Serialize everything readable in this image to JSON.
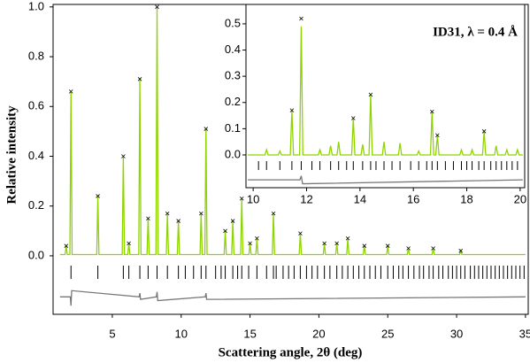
{
  "chart_data": [
    {
      "type": "line",
      "x_label": "Scattering angle, 2θ (deg)",
      "y_label": "Relative intensity",
      "xlim": [
        0.7,
        35.2
      ],
      "ylim": [
        -0.235,
        1.01
      ],
      "xticks": [
        5,
        10,
        15,
        20,
        25,
        30,
        35
      ],
      "yticks": [
        {
          "value": 0,
          "label": "0.0"
        },
        0.2,
        0.4,
        0.6,
        0.8,
        {
          "value": 1,
          "label": "1.0"
        }
      ],
      "series": [
        {
          "kind": "line",
          "color": "#8fd400",
          "x": [
            1.2,
            1.57,
            1.65,
            1.73,
            1.92,
            2.0,
            2.08,
            3.87,
            3.95,
            4.03,
            5.72,
            5.8,
            5.88,
            6.12,
            6.2,
            6.28,
            6.92,
            7.0,
            7.08,
            7.52,
            7.6,
            7.68,
            8.17,
            8.25,
            8.33,
            8.92,
            9.0,
            9.08,
            9.72,
            9.8,
            9.88,
            11.37,
            11.45,
            11.53,
            11.72,
            11.8,
            11.88,
            13.12,
            13.2,
            13.28,
            13.67,
            13.75,
            13.83,
            14.32,
            14.4,
            14.48,
            14.92,
            15.0,
            15.08,
            15.42,
            15.5,
            15.58,
            16.62,
            16.7,
            16.78,
            18.57,
            18.65,
            18.73,
            20.32,
            20.4,
            20.48,
            21.22,
            21.3,
            21.38,
            22.02,
            22.1,
            22.18,
            23.22,
            23.3,
            23.38,
            24.92,
            25.0,
            25.08,
            26.42,
            26.5,
            26.58,
            28.22,
            28.3,
            28.38,
            30.22,
            30.3,
            30.38,
            35
          ],
          "values": [
            0.005,
            0.005,
            0.04,
            0.005,
            0.005,
            0.66,
            0.005,
            0.005,
            0.24,
            0.005,
            0.005,
            0.4,
            0.005,
            0.005,
            0.05,
            0.005,
            0.005,
            0.71,
            0.005,
            0.005,
            0.15,
            0.005,
            0.005,
            1.0,
            0.005,
            0.005,
            0.17,
            0.005,
            0.005,
            0.14,
            0.005,
            0.005,
            0.17,
            0.005,
            0.005,
            0.51,
            0.005,
            0.005,
            0.1,
            0.005,
            0.005,
            0.14,
            0.005,
            0.005,
            0.23,
            0.005,
            0.005,
            0.05,
            0.005,
            0.005,
            0.07,
            0.005,
            0.005,
            0.17,
            0.005,
            0.005,
            0.09,
            0.005,
            0.005,
            0.05,
            0.005,
            0.005,
            0.05,
            0.005,
            0.005,
            0.07,
            0.005,
            0.005,
            0.04,
            0.005,
            0.005,
            0.04,
            0.005,
            0.005,
            0.03,
            0.005,
            0.005,
            0.03,
            0.005,
            0.005,
            0.02,
            0.005,
            0.005
          ]
        },
        {
          "kind": "cross",
          "color": "#000000",
          "x": [
            1.65,
            2.0,
            3.95,
            5.8,
            6.2,
            7.0,
            7.6,
            8.25,
            9.0,
            9.8,
            11.45,
            11.8,
            13.2,
            13.75,
            14.4,
            15.0,
            15.5,
            16.7,
            18.65,
            20.4,
            21.3,
            22.1,
            23.3,
            25.0,
            26.5,
            28.3,
            30.3
          ],
          "values": [
            0.04,
            0.66,
            0.24,
            0.4,
            0.05,
            0.71,
            0.15,
            1.0,
            0.17,
            0.14,
            0.17,
            0.51,
            0.1,
            0.14,
            0.23,
            0.05,
            0.07,
            0.17,
            0.09,
            0.05,
            0.05,
            0.07,
            0.04,
            0.04,
            0.03,
            0.03,
            0.02
          ]
        },
        {
          "kind": "line",
          "color": "#777777",
          "x": [
            1.2,
            1.95,
            2.0,
            2.05,
            6.95,
            7.0,
            7.05,
            8.2,
            8.25,
            8.3,
            11.75,
            11.8,
            11.85,
            35
          ],
          "values": [
            -0.165,
            -0.165,
            -0.2,
            -0.14,
            -0.165,
            -0.15,
            -0.175,
            -0.165,
            -0.145,
            -0.18,
            -0.165,
            -0.15,
            -0.175,
            -0.165
          ]
        }
      ],
      "reflections": [
        2.0,
        3.95,
        5.8,
        6.2,
        7.0,
        7.6,
        8.25,
        9.0,
        9.8,
        10.3,
        10.9,
        11.45,
        11.8,
        12.5,
        12.9,
        13.2,
        13.75,
        14.1,
        14.4,
        14.9,
        15.5,
        16.2,
        16.7,
        16.9,
        17.4,
        17.8,
        18.2,
        18.65,
        19.1,
        19.5,
        19.9,
        20.4,
        20.8,
        21.3,
        21.7,
        22.1,
        22.5,
        22.9,
        23.3,
        23.7,
        24.1,
        24.5,
        25.0,
        25.4,
        25.8,
        26.1,
        26.5,
        26.9,
        27.3,
        27.6,
        28.0,
        28.3,
        28.7,
        29.0,
        29.4,
        29.7,
        30.0,
        30.3,
        30.6,
        31.0,
        31.3,
        31.6,
        31.9,
        32.2,
        32.5,
        32.8,
        33.1,
        33.4,
        33.7,
        34.0,
        34.3,
        34.6,
        34.9
      ]
    },
    {
      "type": "line",
      "annotation": "ID31, λ = 0.4 Å",
      "xlim": [
        9.73,
        20.17
      ],
      "ylim": [
        -0.125,
        0.574
      ],
      "xticks": [
        10,
        12,
        14,
        16,
        18,
        20
      ],
      "yticks": [
        {
          "value": 0,
          "label": "0.0"
        },
        0.1,
        0.2,
        0.3,
        0.4,
        0.5
      ],
      "series": [
        {
          "kind": "line",
          "color": "#8fd400",
          "x": [
            9.8,
            10.44,
            10.5,
            10.56,
            10.94,
            11.0,
            11.06,
            11.39,
            11.45,
            11.51,
            11.74,
            11.8,
            11.86,
            12.44,
            12.5,
            12.56,
            12.84,
            12.9,
            12.96,
            13.14,
            13.2,
            13.26,
            13.69,
            13.75,
            13.81,
            14.04,
            14.1,
            14.16,
            14.34,
            14.4,
            14.46,
            14.84,
            14.9,
            14.96,
            15.44,
            15.5,
            15.56,
            16.14,
            16.2,
            16.26,
            16.64,
            16.7,
            16.76,
            16.84,
            16.9,
            16.96,
            17.74,
            17.8,
            17.86,
            18.14,
            18.2,
            18.26,
            18.59,
            18.65,
            18.71,
            19.04,
            19.1,
            19.16,
            19.44,
            19.5,
            19.56,
            19.84,
            19.9,
            19.96,
            20.1
          ],
          "values": [
            0.0,
            0.0,
            0.02,
            0.0,
            0.0,
            0.015,
            0.0,
            0.0,
            0.17,
            0.0,
            0.0,
            0.49,
            0.0,
            0.0,
            0.02,
            0.0,
            0.0,
            0.035,
            0.0,
            0.0,
            0.05,
            0.0,
            0.0,
            0.14,
            0.0,
            0.0,
            0.04,
            0.0,
            0.0,
            0.23,
            0.0,
            0.0,
            0.05,
            0.0,
            0.0,
            0.045,
            0.0,
            0.0,
            0.015,
            0.0,
            0.0,
            0.165,
            0.0,
            0.0,
            0.075,
            0.0,
            0.0,
            0.02,
            0.0,
            0.0,
            0.02,
            0.0,
            0.0,
            0.09,
            0.0,
            0.0,
            0.035,
            0.0,
            0.0,
            0.02,
            0.0,
            0.0,
            0.02,
            0.0,
            0.0
          ]
        },
        {
          "kind": "cross",
          "color": "#000000",
          "x": [
            11.45,
            11.8,
            13.75,
            14.4,
            16.7,
            16.9,
            18.65
          ],
          "values": [
            0.17,
            0.52,
            0.14,
            0.23,
            0.165,
            0.075,
            0.09
          ]
        },
        {
          "kind": "line",
          "color": "#777777",
          "x": [
            9.8,
            11.75,
            11.8,
            11.85,
            20.1
          ],
          "values": [
            -0.095,
            -0.095,
            -0.08,
            -0.11,
            -0.095
          ]
        }
      ],
      "reflections": [
        10.2,
        10.5,
        11.0,
        11.45,
        11.8,
        12.2,
        12.5,
        12.9,
        13.2,
        13.5,
        13.75,
        14.1,
        14.4,
        14.6,
        14.9,
        15.2,
        15.5,
        15.9,
        16.2,
        16.5,
        16.7,
        16.9,
        17.2,
        17.5,
        17.8,
        18.0,
        18.2,
        18.45,
        18.65,
        18.9,
        19.1,
        19.3,
        19.5,
        19.7,
        19.9
      ]
    }
  ]
}
